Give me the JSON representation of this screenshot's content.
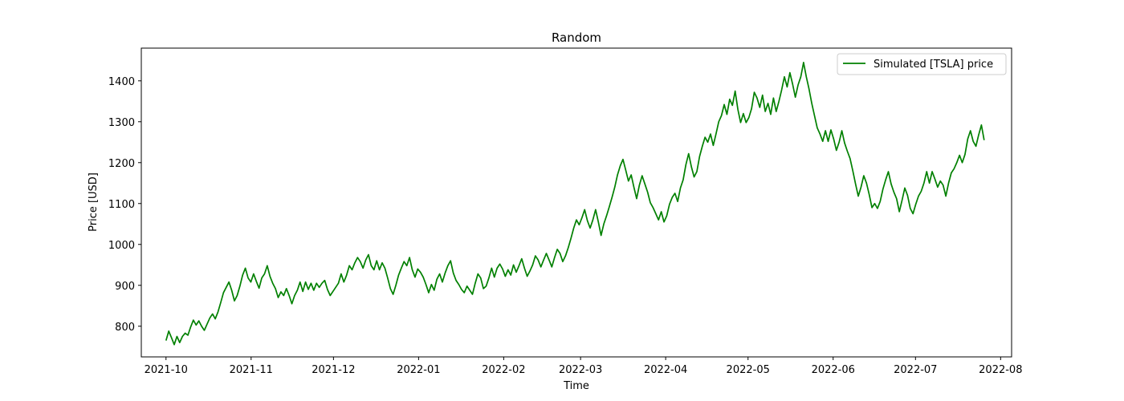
{
  "chart_data": {
    "type": "line",
    "title": "Random",
    "xlabel": "Time",
    "ylabel": "Price [USD]",
    "x_start": "2021-10-01",
    "x_end": "2022-07-26",
    "xlim": [
      "2021-09-22",
      "2022-08-05"
    ],
    "ylim": [
      725,
      1480
    ],
    "x_ticks": [
      "2021-10",
      "2021-11",
      "2021-12",
      "2022-01",
      "2022-02",
      "2022-03",
      "2022-04",
      "2022-05",
      "2022-06",
      "2022-07",
      "2022-08"
    ],
    "y_ticks": [
      800,
      900,
      1000,
      1100,
      1200,
      1300,
      1400
    ],
    "grid": false,
    "legend_position": "upper right",
    "series": [
      {
        "name": "Simulated [TSLA] price",
        "color": "#008000",
        "values": [
          765,
          788,
          772,
          755,
          775,
          760,
          775,
          783,
          778,
          798,
          815,
          803,
          813,
          800,
          790,
          805,
          820,
          830,
          818,
          835,
          858,
          882,
          895,
          908,
          888,
          862,
          875,
          898,
          925,
          942,
          918,
          908,
          928,
          910,
          893,
          918,
          928,
          948,
          922,
          905,
          892,
          870,
          884,
          875,
          892,
          875,
          855,
          875,
          888,
          908,
          885,
          908,
          890,
          905,
          888,
          905,
          895,
          905,
          912,
          890,
          875,
          885,
          895,
          905,
          928,
          908,
          925,
          948,
          938,
          955,
          968,
          958,
          942,
          962,
          975,
          948,
          938,
          960,
          938,
          955,
          942,
          918,
          892,
          878,
          900,
          925,
          942,
          958,
          948,
          968,
          938,
          920,
          940,
          932,
          920,
          902,
          882,
          902,
          888,
          915,
          928,
          908,
          930,
          948,
          960,
          930,
          912,
          902,
          890,
          882,
          898,
          888,
          878,
          905,
          928,
          918,
          892,
          898,
          918,
          942,
          920,
          942,
          952,
          940,
          922,
          938,
          925,
          950,
          932,
          948,
          965,
          942,
          922,
          935,
          950,
          972,
          962,
          945,
          962,
          978,
          962,
          945,
          968,
          988,
          978,
          958,
          972,
          992,
          1015,
          1040,
          1060,
          1048,
          1065,
          1085,
          1058,
          1040,
          1060,
          1085,
          1055,
          1022,
          1050,
          1070,
          1092,
          1115,
          1140,
          1170,
          1192,
          1208,
          1182,
          1155,
          1170,
          1140,
          1112,
          1145,
          1168,
          1148,
          1128,
          1102,
          1090,
          1075,
          1060,
          1080,
          1055,
          1070,
          1098,
          1115,
          1125,
          1105,
          1138,
          1158,
          1195,
          1222,
          1190,
          1165,
          1178,
          1215,
          1240,
          1262,
          1250,
          1270,
          1242,
          1270,
          1300,
          1315,
          1342,
          1318,
          1355,
          1340,
          1375,
          1330,
          1298,
          1320,
          1298,
          1310,
          1332,
          1372,
          1358,
          1335,
          1365,
          1325,
          1345,
          1318,
          1358,
          1325,
          1350,
          1378,
          1410,
          1385,
          1420,
          1392,
          1360,
          1390,
          1410,
          1445,
          1410,
          1380,
          1345,
          1315,
          1285,
          1270,
          1252,
          1278,
          1252,
          1280,
          1258,
          1230,
          1250,
          1278,
          1248,
          1228,
          1210,
          1180,
          1148,
          1118,
          1140,
          1168,
          1150,
          1122,
          1090,
          1100,
          1088,
          1105,
          1135,
          1158,
          1178,
          1148,
          1128,
          1112,
          1080,
          1108,
          1138,
          1120,
          1088,
          1075,
          1098,
          1118,
          1130,
          1150,
          1178,
          1150,
          1178,
          1160,
          1140,
          1155,
          1145,
          1118,
          1150,
          1175,
          1185,
          1200,
          1218,
          1200,
          1220,
          1258,
          1278,
          1252,
          1240,
          1268,
          1292,
          1255
        ]
      }
    ]
  }
}
